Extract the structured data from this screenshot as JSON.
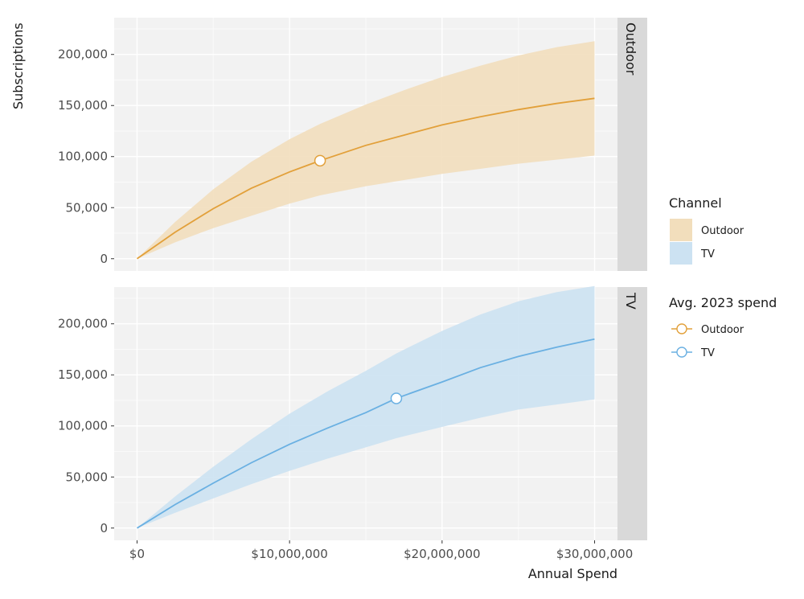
{
  "chart_data": {
    "type": "area",
    "xlabel": "Annual Spend",
    "ylabel": "Subscriptions",
    "xlim": [
      -1500000,
      31500000
    ],
    "x_ticks": [
      0,
      10000000,
      20000000,
      30000000
    ],
    "x_tick_labels": [
      "$0",
      "$10,000,000",
      "$20,000,000",
      "$30,000,000"
    ],
    "ylim": [
      -12000,
      236000
    ],
    "y_ticks": [
      0,
      50000,
      100000,
      150000,
      200000
    ],
    "y_tick_labels": [
      "0",
      "50,000",
      "100,000",
      "150,000",
      "200,000"
    ],
    "facet_ylim": [
      [
        -12000,
        236000
      ],
      [
        -12000,
        236000
      ]
    ],
    "grid": true,
    "legend_position": "right",
    "legends": [
      {
        "title": "Channel",
        "kind": "fill",
        "entries": [
          "Outdoor",
          "TV"
        ]
      },
      {
        "title": "Avg. 2023 spend",
        "kind": "point",
        "entries": [
          "Outdoor",
          "TV"
        ]
      }
    ],
    "facets": [
      {
        "strip_label": "Outdoor",
        "color": "#E2A03A",
        "fill": "#F2DEBC",
        "x": [
          0,
          2500000,
          5000000,
          7500000,
          10000000,
          12000000,
          15000000,
          17500000,
          20000000,
          22500000,
          25000000,
          27500000,
          30000000
        ],
        "mean": [
          0,
          26000,
          49000,
          69000,
          85000,
          96000,
          111000,
          121000,
          131000,
          139000,
          146000,
          152000,
          157000
        ],
        "lower": [
          0,
          16000,
          30000,
          42000,
          54000,
          62000,
          71000,
          77000,
          83000,
          88000,
          93000,
          97000,
          101000
        ],
        "upper": [
          0,
          36000,
          68000,
          95000,
          117000,
          132000,
          151000,
          165000,
          178000,
          189000,
          199000,
          207000,
          213000
        ],
        "avg_2023_spend": {
          "x": 12000000,
          "y": 96000
        }
      },
      {
        "strip_label": "TV",
        "color": "#6AB0E2",
        "fill": "#CCE2F2",
        "x": [
          0,
          2500000,
          5000000,
          7500000,
          10000000,
          12500000,
          15000000,
          17000000,
          20000000,
          22500000,
          25000000,
          27500000,
          30000000
        ],
        "mean": [
          0,
          23000,
          44000,
          64000,
          82000,
          98000,
          113000,
          127000,
          143000,
          157000,
          168000,
          177000,
          185000
        ],
        "lower": [
          0,
          15000,
          29000,
          43000,
          56000,
          68000,
          79000,
          88000,
          99000,
          108000,
          116000,
          121000,
          126000
        ],
        "upper": [
          0,
          31000,
          60000,
          87000,
          112000,
          134000,
          154000,
          171000,
          193000,
          209000,
          222000,
          231000,
          237000
        ],
        "avg_2023_spend": {
          "x": 17000000,
          "y": 127000
        }
      }
    ]
  }
}
